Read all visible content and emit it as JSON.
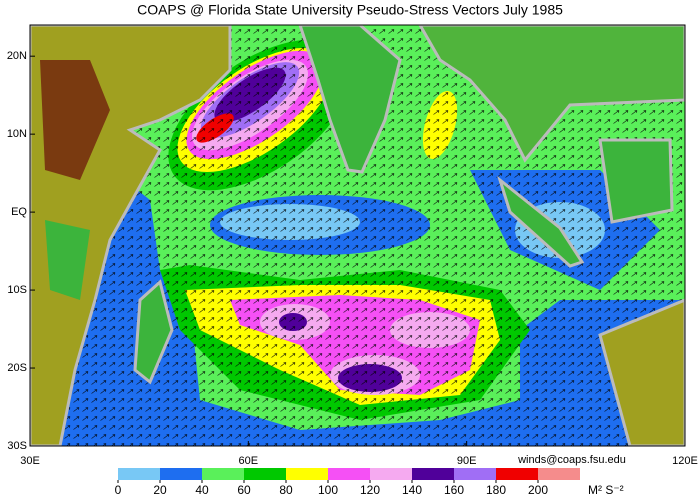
{
  "map": {
    "title": "COAPS @ Florida State University Pseudo-Stress Vectors  July 1985",
    "credit": "winds@coaps.fsu.edu",
    "xlim": [
      30,
      120
    ],
    "ylim": [
      -30,
      24
    ],
    "xticks": [
      {
        "value": 30,
        "label": "30E"
      },
      {
        "value": 60,
        "label": "60E"
      },
      {
        "value": 90,
        "label": "90E"
      },
      {
        "value": 120,
        "label": "120E"
      }
    ],
    "yticks": [
      {
        "value": 20,
        "label": "20N"
      },
      {
        "value": 10,
        "label": "10N"
      },
      {
        "value": 0,
        "label": "EQ"
      },
      {
        "value": -10,
        "label": "10S"
      },
      {
        "value": -20,
        "label": "20S"
      },
      {
        "value": -30,
        "label": "30S"
      }
    ],
    "colorbar": {
      "levels": [
        0,
        20,
        40,
        60,
        80,
        100,
        120,
        140,
        160,
        180,
        200
      ],
      "colors": [
        "#78c8f5",
        "#1e6ef0",
        "#5af05a",
        "#00c800",
        "#ffff00",
        "#f550f5",
        "#f5aaf0",
        "#50009a",
        "#a06ef5",
        "#f00000",
        "#f58c8c"
      ],
      "unit": "M² S⁻²"
    }
  }
}
